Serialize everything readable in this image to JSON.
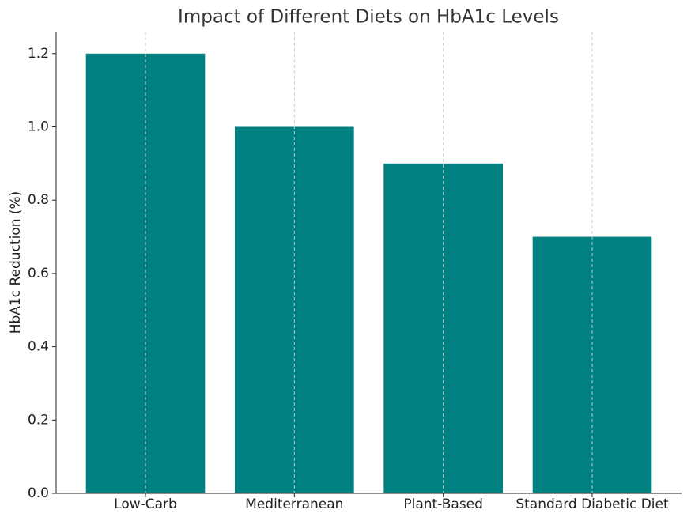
{
  "chart_data": {
    "type": "bar",
    "title": "Impact of Different Diets on HbA1c Levels",
    "y_label": "HbA1c Reduction (%)",
    "categories": [
      "Low-Carb",
      "Mediterranean",
      "Plant-Based",
      "Standard Diabetic Diet"
    ],
    "values": [
      1.2,
      1.0,
      0.9,
      0.7
    ],
    "color": "#008080",
    "ylim": [
      0,
      1.26
    ],
    "yticks": [
      {
        "value": 0,
        "label": "0.0"
      },
      0.2,
      0.4,
      0.6,
      0.8,
      {
        "value": 1,
        "label": "1.0"
      },
      1.2
    ],
    "grid": "x"
  }
}
